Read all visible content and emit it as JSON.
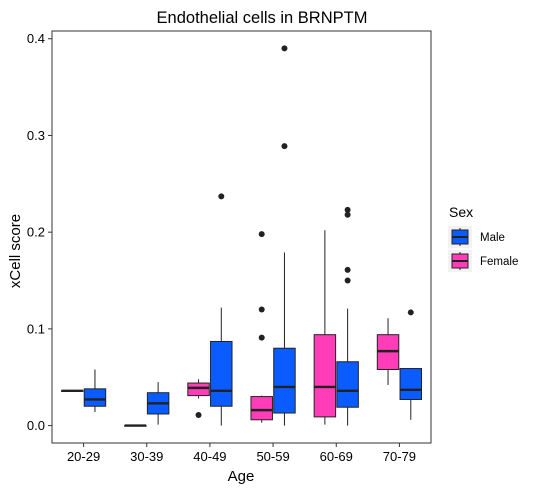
{
  "chart_data": {
    "type": "boxplot",
    "title": "Endothelial cells in BRNPTM",
    "xlabel": "Age",
    "ylabel": "xCell score",
    "categories": [
      "20-29",
      "30-39",
      "40-49",
      "50-59",
      "60-69",
      "70-79"
    ],
    "yticks": [
      0.0,
      0.1,
      0.2,
      0.3,
      0.4
    ],
    "ytick_labels": [
      "0.0",
      "0.1",
      "0.2",
      "0.3",
      "0.4"
    ],
    "ylim": [
      -0.018,
      0.408
    ],
    "grid": false,
    "legend": {
      "title": "Sex",
      "position": "right",
      "items": [
        {
          "label": "Male",
          "color": "#0b5cff"
        },
        {
          "label": "Female",
          "color": "#ff3db8"
        }
      ]
    },
    "series": [
      {
        "name": "Female",
        "color": "#ff3db8",
        "boxes": [
          {
            "category": "20-29",
            "whisker_low": 0.036,
            "q1": 0.036,
            "median": 0.036,
            "q3": 0.036,
            "whisker_high": 0.036,
            "outliers": []
          },
          {
            "category": "30-39",
            "whisker_low": 0.0,
            "q1": 0.0,
            "median": 0.0,
            "q3": 0.0,
            "whisker_high": 0.0,
            "outliers": []
          },
          {
            "category": "40-49",
            "whisker_low": 0.028,
            "q1": 0.031,
            "median": 0.039,
            "q3": 0.044,
            "whisker_high": 0.048,
            "outliers": [
              0.011
            ]
          },
          {
            "category": "50-59",
            "whisker_low": 0.003,
            "q1": 0.006,
            "median": 0.016,
            "q3": 0.03,
            "whisker_high": 0.031,
            "outliers": [
              0.091,
              0.12,
              0.198
            ]
          },
          {
            "category": "60-69",
            "whisker_low": 0.001,
            "q1": 0.009,
            "median": 0.04,
            "q3": 0.094,
            "whisker_high": 0.202,
            "outliers": []
          },
          {
            "category": "70-79",
            "whisker_low": 0.042,
            "q1": 0.058,
            "median": 0.077,
            "q3": 0.094,
            "whisker_high": 0.111,
            "outliers": []
          }
        ]
      },
      {
        "name": "Male",
        "color": "#0b5cff",
        "boxes": [
          {
            "category": "20-29",
            "whisker_low": 0.014,
            "q1": 0.02,
            "median": 0.027,
            "q3": 0.038,
            "whisker_high": 0.058,
            "outliers": []
          },
          {
            "category": "30-39",
            "whisker_low": 0.001,
            "q1": 0.012,
            "median": 0.023,
            "q3": 0.034,
            "whisker_high": 0.045,
            "outliers": []
          },
          {
            "category": "40-49",
            "whisker_low": 0.0,
            "q1": 0.02,
            "median": 0.036,
            "q3": 0.087,
            "whisker_high": 0.122,
            "outliers": [
              0.237
            ]
          },
          {
            "category": "50-59",
            "whisker_low": 0.0,
            "q1": 0.013,
            "median": 0.04,
            "q3": 0.08,
            "whisker_high": 0.179,
            "outliers": [
              0.289,
              0.39
            ]
          },
          {
            "category": "60-69",
            "whisker_low": 0.0,
            "q1": 0.019,
            "median": 0.036,
            "q3": 0.066,
            "whisker_high": 0.121,
            "outliers": [
              0.15,
              0.161,
              0.218,
              0.223
            ]
          },
          {
            "category": "70-79",
            "whisker_low": 0.006,
            "q1": 0.027,
            "median": 0.037,
            "q3": 0.059,
            "whisker_high": 0.059,
            "outliers": [
              0.117
            ]
          }
        ]
      }
    ]
  }
}
